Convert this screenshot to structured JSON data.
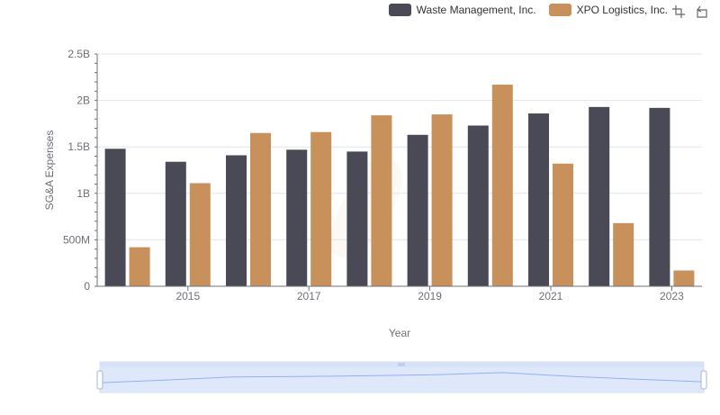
{
  "legend": {
    "items": [
      {
        "name": "Waste Management, Inc.",
        "color": "#4a4a56"
      },
      {
        "name": "XPO Logistics, Inc.",
        "color": "#c8915c"
      }
    ]
  },
  "toolbox": {
    "icons": [
      "zoom-icon",
      "restore-icon"
    ]
  },
  "chart_data": {
    "type": "bar",
    "categories": [
      "2014",
      "2015",
      "2016",
      "2017",
      "2018",
      "2019",
      "2020",
      "2021",
      "2022",
      "2023"
    ],
    "xtick_labels": [
      "2015",
      "2017",
      "2019",
      "2021",
      "2023"
    ],
    "xlabel": "Year",
    "ylabel": "SG&A Expenses",
    "ylim": [
      0,
      2500000000
    ],
    "yticks": [
      0,
      500000000,
      1000000000,
      1500000000,
      2000000000,
      2500000000
    ],
    "ytick_labels": [
      "0",
      "500M",
      "1B",
      "1.5B",
      "2B",
      "2.5B"
    ],
    "grid": true,
    "legend_position": "top-right",
    "series": [
      {
        "name": "Waste Management, Inc.",
        "color": "#4a4a56",
        "values": [
          1480000000,
          1340000000,
          1410000000,
          1470000000,
          1450000000,
          1630000000,
          1730000000,
          1860000000,
          1930000000,
          1920000000
        ]
      },
      {
        "name": "XPO Logistics, Inc.",
        "color": "#c8915c",
        "values": [
          420000000,
          1110000000,
          1650000000,
          1660000000,
          1840000000,
          1850000000,
          2170000000,
          1320000000,
          680000000,
          170000000
        ]
      }
    ]
  },
  "datazoom": {
    "range_start_pct": 0,
    "range_end_pct": 100
  }
}
